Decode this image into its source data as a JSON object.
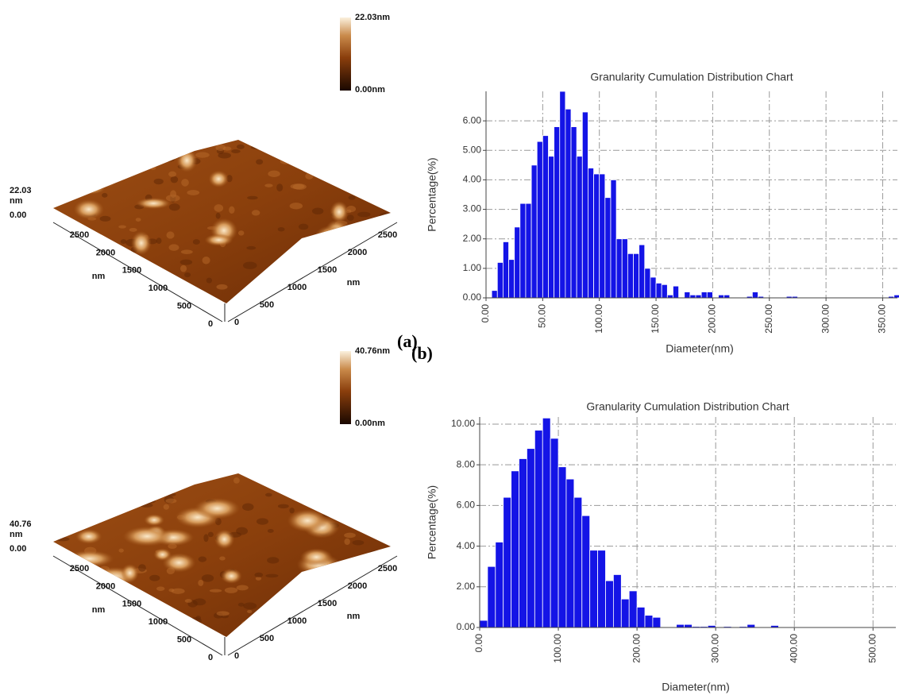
{
  "chart_data": [
    {
      "type": "histogram",
      "title": "Granularity Cumulation Distribution  Chart",
      "xlabel": "Diameter(nm)",
      "ylabel": "Percentage(%)",
      "color": "#1414e6",
      "bins": [
        5,
        10,
        15,
        20,
        25,
        30,
        35,
        40,
        45,
        50,
        55,
        60,
        65,
        70,
        75,
        80,
        85,
        90,
        95,
        100,
        105,
        110,
        115,
        120,
        125,
        130,
        135,
        140,
        145,
        150,
        155,
        160,
        165,
        170,
        175,
        180,
        185,
        190,
        195,
        200,
        205,
        210,
        215,
        220,
        225,
        230,
        235,
        240,
        245,
        250,
        255,
        260,
        265,
        270,
        275,
        280,
        285,
        290,
        295,
        300,
        305,
        310,
        315,
        320,
        325,
        330,
        335,
        340,
        345,
        350,
        355,
        360,
        365
      ],
      "counts": [
        0.25,
        1.2,
        1.9,
        1.3,
        2.4,
        3.2,
        3.2,
        4.5,
        5.3,
        5.5,
        4.8,
        5.8,
        7.0,
        6.4,
        5.8,
        4.8,
        6.3,
        4.4,
        4.2,
        4.2,
        3.4,
        4.0,
        2.0,
        2.0,
        1.5,
        1.5,
        1.8,
        1.0,
        0.7,
        0.5,
        0.45,
        0.1,
        0.4,
        0,
        0.2,
        0.1,
        0.1,
        0.2,
        0.2,
        0,
        0.1,
        0.1,
        0,
        0,
        0,
        0.05,
        0.2,
        0.05,
        0,
        0,
        0,
        0,
        0.05,
        0.05,
        0,
        0,
        0,
        0,
        0,
        0,
        0,
        0,
        0,
        0,
        0,
        0,
        0,
        0,
        0,
        0,
        0.05,
        0.1
      ],
      "xlim": [
        0,
        363
      ],
      "ylim": [
        0,
        7
      ],
      "xticks": [
        {
          "value": 0,
          "label": "0.00"
        },
        {
          "value": 50,
          "label": "50.00"
        },
        {
          "value": 100,
          "label": "100.00"
        },
        {
          "value": 150,
          "label": "150.00"
        },
        {
          "value": 200,
          "label": "200.00"
        },
        {
          "value": 250,
          "label": "250.00"
        },
        {
          "value": 300,
          "label": "300.00"
        },
        {
          "value": 350,
          "label": "350.00"
        }
      ],
      "yticks": [
        {
          "value": 0,
          "label": "0.00"
        },
        {
          "value": 1,
          "label": "1.00"
        },
        {
          "value": 2,
          "label": "2.00"
        },
        {
          "value": 3,
          "label": "3.00"
        },
        {
          "value": 4,
          "label": "4.00"
        },
        {
          "value": 5,
          "label": "5.00"
        },
        {
          "value": 6,
          "label": "6.00"
        }
      ],
      "grid": true
    },
    {
      "type": "histogram",
      "title": "Granularity Cumulation Distribution  Chart",
      "xlabel": "Diameter(nm)",
      "ylabel": "Percentage(%)",
      "color": "#1414e6",
      "bins": [
        0,
        10,
        20,
        30,
        40,
        50,
        60,
        70,
        80,
        90,
        100,
        110,
        120,
        130,
        140,
        150,
        160,
        170,
        180,
        190,
        200,
        210,
        220,
        230,
        240,
        250,
        260,
        270,
        280,
        290,
        300,
        310,
        320,
        330,
        340,
        350,
        360,
        370,
        380
      ],
      "counts": [
        0.35,
        3.0,
        4.2,
        6.4,
        7.7,
        8.3,
        8.8,
        9.7,
        10.3,
        9.3,
        7.9,
        7.3,
        6.4,
        5.5,
        3.8,
        3.8,
        2.3,
        2.6,
        1.4,
        1.8,
        1.0,
        0.6,
        0.5,
        0,
        0,
        0.15,
        0.15,
        0.05,
        0.05,
        0.1,
        0,
        0.05,
        0,
        0.05,
        0.15,
        0,
        0,
        0.1
      ],
      "xlim": [
        0,
        529
      ],
      "ylim": [
        0,
        10.35
      ],
      "xticks": [
        {
          "value": 0,
          "label": "0.00"
        },
        {
          "value": 100,
          "label": "100.00"
        },
        {
          "value": 200,
          "label": "200.00"
        },
        {
          "value": 300,
          "label": "300.00"
        },
        {
          "value": 400,
          "label": "400.00"
        },
        {
          "value": 500,
          "label": "500.00"
        }
      ],
      "yticks": [
        {
          "value": 0,
          "label": "0.00"
        },
        {
          "value": 2,
          "label": "2.00"
        },
        {
          "value": 4,
          "label": "4.00"
        },
        {
          "value": 6,
          "label": "6.00"
        },
        {
          "value": 8,
          "label": "8.00"
        },
        {
          "value": 10,
          "label": "10.00"
        }
      ],
      "grid": true
    }
  ],
  "afm_images": [
    {
      "panel_label": "(a)",
      "colorbar_max": "22.03nm",
      "colorbar_min": "0.00nm",
      "z_max": "22.03",
      "z_unit": "nm",
      "z_min": "0.00",
      "left_ticks": [
        "2500",
        "2000",
        "1500",
        "1000",
        "500",
        "0"
      ],
      "right_ticks": [
        "0",
        "500",
        "1000",
        "1500",
        "2000",
        "2500"
      ],
      "left_unit": "nm",
      "right_unit": "nm"
    },
    {
      "panel_label": "(b)",
      "colorbar_max": "40.76nm",
      "colorbar_min": "0.00nm",
      "z_max": "40.76",
      "z_unit": "nm",
      "z_min": "0.00",
      "left_ticks": [
        "2500",
        "2000",
        "1500",
        "1000",
        "500",
        "0"
      ],
      "right_ticks": [
        "0",
        "500",
        "1000",
        "1500",
        "2000",
        "2500"
      ],
      "left_unit": "nm",
      "right_unit": "nm"
    }
  ]
}
